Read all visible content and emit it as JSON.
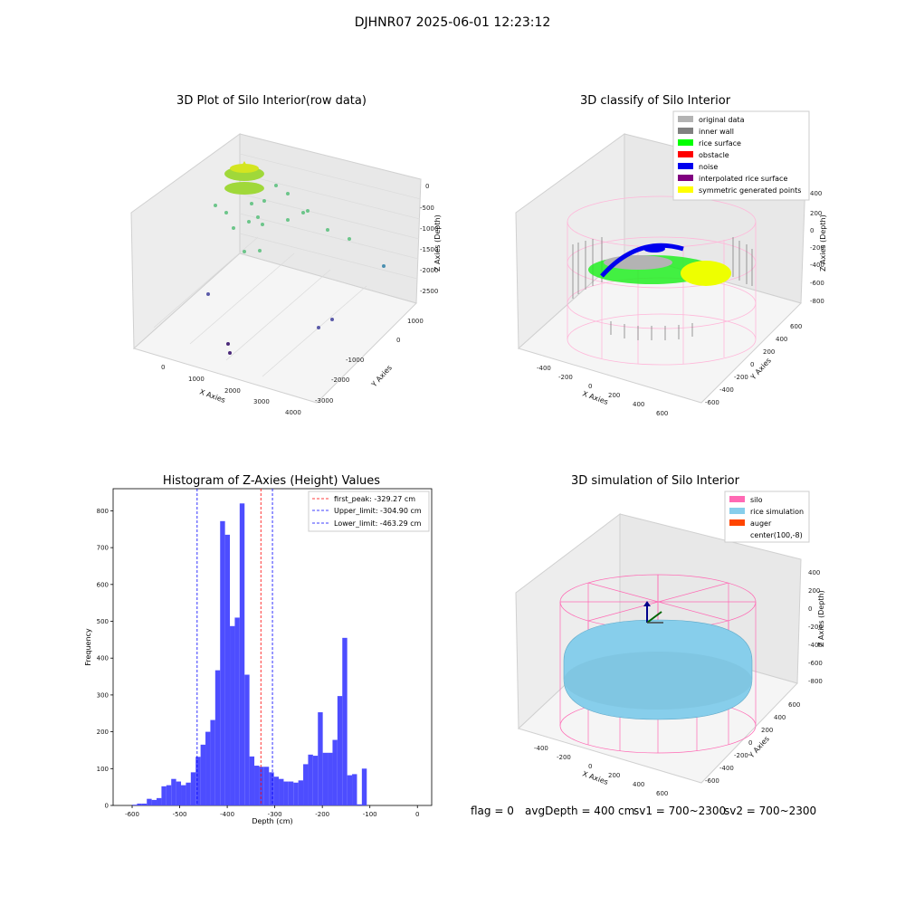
{
  "figure": {
    "title": "DJHNR07 2025-06-01 12:23:12"
  },
  "panels": {
    "raw": {
      "title": "3D Plot of Silo Interior(row data)",
      "xlabel": "X Axies",
      "ylabel": "Y Axies",
      "zlabel": "Z Axies (Depth)",
      "xticks": [
        "0",
        "1000",
        "2000",
        "3000",
        "4000"
      ],
      "yticks": [
        "1000",
        "0",
        "-1000",
        "-2000",
        "-3000"
      ],
      "zticks": [
        "0",
        "-500",
        "-1000",
        "-1500",
        "-2000",
        "-2500"
      ]
    },
    "classify": {
      "title": "3D classify of Silo Interior",
      "xlabel": "X Axies",
      "ylabel": "Y Axies",
      "zlabel": "Z Axies (Depth)",
      "xticks": [
        "-400",
        "-200",
        "0",
        "200",
        "400",
        "600"
      ],
      "yticks": [
        "600",
        "400",
        "200",
        "0",
        "-200",
        "-400",
        "-600"
      ],
      "zticks": [
        "400",
        "200",
        "0",
        "-200",
        "-400",
        "-600",
        "-800"
      ],
      "legend": [
        {
          "label": "original data",
          "color": "#b3b3b3"
        },
        {
          "label": "inner wall",
          "color": "#808080"
        },
        {
          "label": "rice surface",
          "color": "#00ff00"
        },
        {
          "label": "obstacle",
          "color": "#ff0000"
        },
        {
          "label": "noise",
          "color": "#0000ee"
        },
        {
          "label": "interpolated rice surface",
          "color": "#800080"
        },
        {
          "label": "symmetric generated points",
          "color": "#ffff00"
        }
      ]
    },
    "simulation": {
      "title": "3D simulation of Silo Interior",
      "xlabel": "X Axies",
      "ylabel": "Y Axies",
      "zlabel": "Z Axies (Depth)",
      "xticks": [
        "-400",
        "-200",
        "0",
        "200",
        "400",
        "600"
      ],
      "yticks": [
        "600",
        "400",
        "200",
        "0",
        "-200",
        "-400",
        "-600"
      ],
      "zticks": [
        "400",
        "200",
        "0",
        "-200",
        "-400",
        "-600",
        "-800"
      ],
      "legend": [
        {
          "label": "silo",
          "color": "#ff69b4"
        },
        {
          "label": "rice simulation",
          "color": "#87ceeb"
        },
        {
          "label": "auger",
          "color": "#ff4500"
        },
        {
          "label": "center(100,-8)",
          "color": "#ffffff"
        }
      ]
    }
  },
  "chart_data": {
    "type": "bar",
    "title": "Histogram of Z-Axies (Height) Values",
    "xlabel": "Depth (cm)",
    "ylabel": "Frequency",
    "xlim": [
      -640,
      30
    ],
    "ylim": [
      0,
      860
    ],
    "xticks": [
      -600,
      -500,
      -400,
      -300,
      -200,
      -100,
      0
    ],
    "yticks": [
      0,
      100,
      200,
      300,
      400,
      500,
      600,
      700,
      800
    ],
    "bar_color": "#4d4dff",
    "bin_start": -600,
    "bin_width": 10.28,
    "counts": [
      2,
      5,
      5,
      18,
      15,
      20,
      52,
      55,
      72,
      65,
      55,
      62,
      90,
      132,
      165,
      200,
      232,
      367,
      772,
      735,
      487,
      510,
      820,
      355,
      133,
      108,
      105,
      105,
      90,
      78,
      72,
      65,
      65,
      62,
      68,
      112,
      138,
      135,
      253,
      143,
      143,
      178,
      297,
      455,
      82,
      85,
      3,
      100
    ],
    "vlines": [
      {
        "label": "first_peak: -329.27 cm",
        "x": -329.27,
        "color": "#ff0000"
      },
      {
        "label": "Upper_limit: -304.90 cm",
        "x": -304.9,
        "color": "#0000ff"
      },
      {
        "label": "Lower_limit: -463.29 cm",
        "x": -463.29,
        "color": "#0000ff"
      }
    ],
    "legend_position": "upper right"
  },
  "status": {
    "flag": "flag = 0",
    "avg_depth": "avgDepth = 400 cm",
    "sv1": "sv1 = 700~2300",
    "sv2": "sv2 = 700~2300"
  }
}
